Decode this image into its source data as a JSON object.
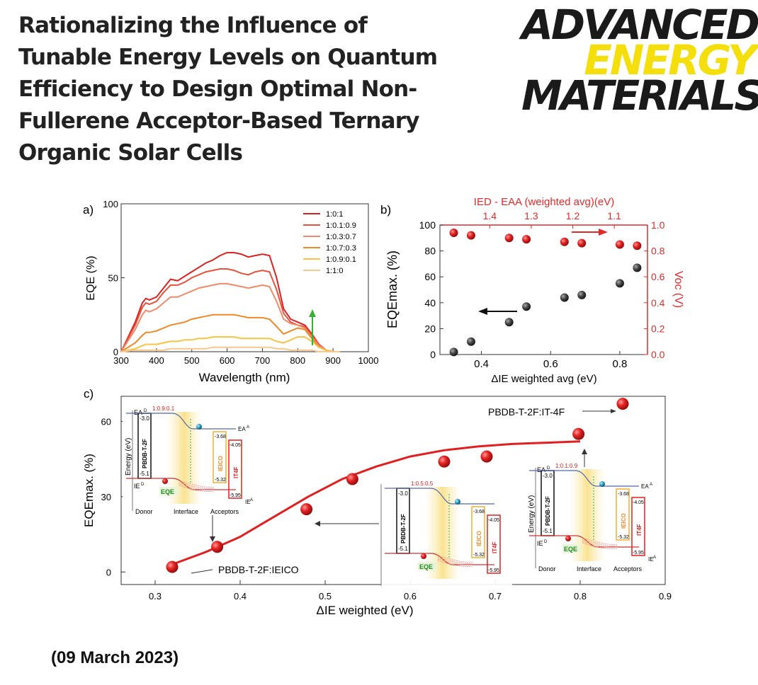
{
  "paper": {
    "title_lines": [
      "Rationalizing the Influence of",
      "Tunable Energy Levels on Quantum",
      "Efficiency to Design Optimal Non-",
      "Fullerene Acceptor-Based Ternary",
      "Organic Solar Cells"
    ],
    "date": "(09 March 2023)"
  },
  "logo": {
    "line1": "ADVANCED",
    "line2": "ENERGY",
    "line3": "MATERIALS",
    "color_dark": "#1a1a1a",
    "color_accent": "#f4df0c"
  },
  "panel_labels": {
    "a": "a)",
    "b": "b)",
    "c": "c)"
  },
  "chart_data": [
    {
      "type": "line",
      "xlabel": "Wavelength (nm)",
      "ylabel": "EQE (%)",
      "xlim": [
        300,
        1000
      ],
      "ylim": [
        0,
        100
      ],
      "x_ticks": [
        300,
        400,
        500,
        600,
        700,
        800,
        900,
        1000
      ],
      "y_ticks": [
        0,
        50,
        100
      ],
      "x": [
        300,
        340,
        360,
        370,
        380,
        400,
        420,
        440,
        460,
        480,
        500,
        520,
        540,
        560,
        580,
        600,
        620,
        640,
        660,
        680,
        700,
        720,
        740,
        760,
        780,
        800,
        820,
        840,
        860,
        880,
        900,
        920
      ],
      "series": [
        {
          "name": "1:0:1",
          "color": "#d92323",
          "values": [
            0,
            20,
            33,
            36,
            35,
            37,
            43,
            49,
            48,
            51,
            54,
            57,
            60,
            62,
            65,
            67,
            67,
            66,
            64,
            65,
            66,
            65,
            50,
            29,
            22,
            20,
            18,
            12,
            5,
            1,
            0,
            0
          ]
        },
        {
          "name": "1:0.1:0.9",
          "color": "#e4533a",
          "values": [
            0,
            18,
            30,
            33,
            32,
            34,
            40,
            45,
            45,
            47,
            50,
            52,
            54,
            55,
            56,
            56,
            55,
            53,
            52,
            54,
            55,
            54,
            42,
            26,
            20,
            18,
            17,
            11,
            5,
            1,
            0,
            0
          ]
        },
        {
          "name": "1:0.3:0.7",
          "color": "#f08a6a",
          "values": [
            0,
            15,
            25,
            28,
            27,
            29,
            33,
            37,
            37,
            39,
            41,
            43,
            44,
            45,
            46,
            46,
            45,
            44,
            43,
            44,
            45,
            44,
            34,
            22,
            19,
            18,
            16,
            10,
            4,
            1,
            0,
            0
          ]
        },
        {
          "name": "1:0.7:0.3",
          "color": "#ef8a27",
          "values": [
            0,
            6,
            11,
            13,
            13,
            14,
            16,
            18,
            19,
            20,
            22,
            23,
            24,
            25,
            25,
            25,
            25,
            24,
            23,
            23,
            23,
            22,
            17,
            12,
            14,
            16,
            15,
            9,
            3,
            1,
            0,
            0
          ]
        },
        {
          "name": "1:0.9:0.1",
          "color": "#f7c343",
          "values": [
            0,
            2,
            4,
            5,
            5,
            5,
            6,
            7,
            7,
            8,
            8,
            9,
            9,
            10,
            10,
            10,
            10,
            9,
            9,
            9,
            9,
            9,
            7,
            6,
            8,
            10,
            10,
            7,
            3,
            1,
            0,
            0
          ]
        },
        {
          "name": "1:1:0",
          "color": "#f7c78c",
          "values": [
            0,
            1,
            1,
            1,
            1,
            1,
            1,
            2,
            2,
            2,
            2,
            2,
            2,
            3,
            3,
            3,
            3,
            3,
            3,
            3,
            3,
            3,
            2,
            2,
            1,
            1,
            1,
            1,
            0,
            0,
            0,
            0
          ]
        }
      ],
      "legend_position": "top-right"
    },
    {
      "type": "scatter",
      "xlabel": "ΔIE weighted avg (eV)",
      "ylabel": "EQEmax. (%)",
      "y2label": "Voc (V)",
      "x2label": "IED - EAA (weighted avg)(eV)",
      "xlim": [
        0.28,
        0.88
      ],
      "ylim": [
        0,
        100
      ],
      "y2lim": [
        0,
        1.0
      ],
      "x2lim": [
        1.52,
        1.02
      ],
      "x_ticks": [
        0.4,
        0.6,
        0.8
      ],
      "y_ticks": [
        0,
        20,
        40,
        60,
        80,
        100
      ],
      "y2_ticks": [
        0.0,
        0.2,
        0.4,
        0.6,
        0.8,
        1.0
      ],
      "x2_ticks": [
        1.4,
        1.3,
        1.2,
        1.1
      ],
      "series": [
        {
          "axis": "left",
          "color": "#444444",
          "x": [
            0.32,
            0.37,
            0.48,
            0.53,
            0.64,
            0.69,
            0.8,
            0.85
          ],
          "values": [
            2,
            10,
            25,
            37,
            44,
            46,
            55,
            67
          ]
        },
        {
          "axis": "right",
          "color": "#e02b2b",
          "x": [
            0.32,
            0.37,
            0.48,
            0.53,
            0.64,
            0.69,
            0.8,
            0.85
          ],
          "values": [
            0.94,
            0.92,
            0.9,
            0.89,
            0.87,
            0.86,
            0.85,
            0.84
          ]
        }
      ]
    },
    {
      "type": "scatter",
      "xlabel": "ΔIE weighted (eV)",
      "ylabel": "EQEmax. (%)",
      "xlim": [
        0.26,
        0.9
      ],
      "ylim": [
        -5,
        70
      ],
      "x_ticks": [
        0.3,
        0.4,
        0.5,
        0.6,
        0.7,
        0.8,
        0.9
      ],
      "y_ticks": [
        0,
        30,
        60
      ],
      "series": [
        {
          "color": "#e02020",
          "x": [
            0.32,
            0.373,
            0.478,
            0.532,
            0.64,
            0.69,
            0.798,
            0.85
          ],
          "values": [
            2,
            10,
            25,
            37,
            44,
            46,
            55,
            67
          ]
        }
      ],
      "fit": [
        [
          0.32,
          3
        ],
        [
          0.36,
          8
        ],
        [
          0.4,
          14
        ],
        [
          0.44,
          22
        ],
        [
          0.48,
          30
        ],
        [
          0.52,
          37
        ],
        [
          0.56,
          42
        ],
        [
          0.6,
          46
        ],
        [
          0.64,
          48.5
        ],
        [
          0.68,
          50
        ],
        [
          0.72,
          51
        ],
        [
          0.76,
          51.5
        ],
        [
          0.8,
          52
        ]
      ],
      "annotations": {
        "top": "PBDB-T-2F:IT-4F",
        "bottom": "PBDB-T-2F:IEICO"
      }
    }
  ],
  "insets": {
    "ratios": [
      "1:0.9:0.1",
      "1:0.5:0.5",
      "1:0.1:0.9"
    ],
    "donor": "PBDB-T-2F",
    "acceptor1": "IEICO",
    "acceptor2": "IT4F",
    "eqe": "EQE",
    "ea_d": "EA",
    "ie_d": "IE",
    "ea_a": "EA",
    "ie_a": "IE",
    "sup_d": "D",
    "sup_a": "A",
    "energy_axis": "Energy (eV)",
    "labels": {
      "donor": "Donor",
      "interface": "Interface",
      "acceptors": "Acceptors"
    },
    "values": {
      "d_lumo": "-3.0",
      "d_homo": "-5.1",
      "a1_lumo": "-3.68",
      "a1_homo": "-5.32",
      "a2_lumo": "-4.05",
      "a2_homo": "-5.95"
    }
  }
}
